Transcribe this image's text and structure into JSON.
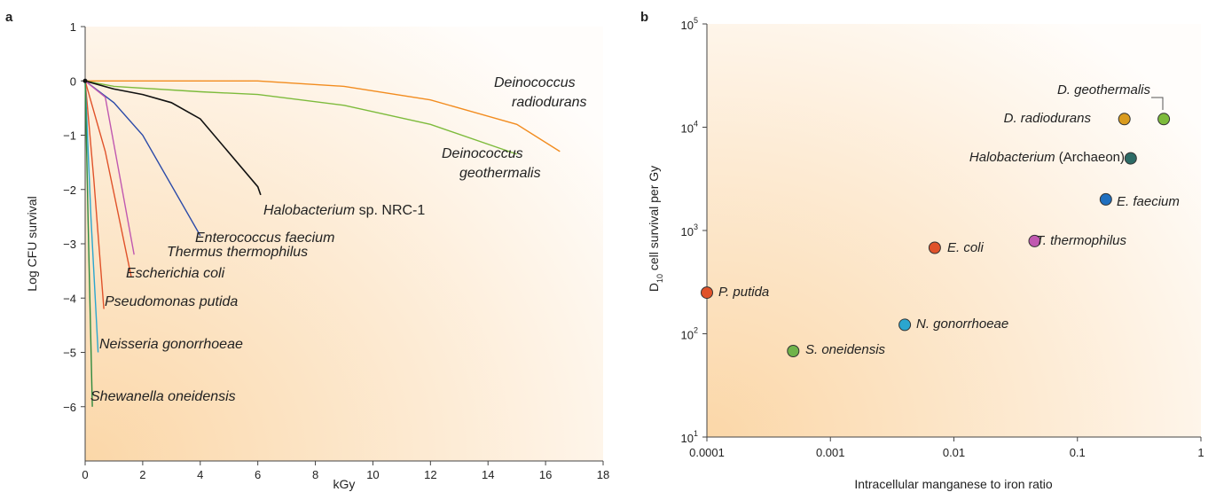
{
  "panel_a": {
    "letter": "a",
    "chart_data": {
      "type": "line",
      "xlabel": "kGy",
      "ylabel": "Log CFU survival",
      "xlim": [
        0,
        18
      ],
      "ylim": [
        -7,
        1
      ],
      "xticks": [
        "0",
        "2",
        "4",
        "6",
        "8",
        "10",
        "12",
        "14",
        "16",
        "18"
      ],
      "yticks": [
        "1",
        "0",
        "−1",
        "−2",
        "−3",
        "−4",
        "−5",
        "−6"
      ],
      "series": [
        {
          "name": "Deinococcus radiodurans",
          "color": "#f28c1f",
          "x": [
            0,
            6,
            9,
            12,
            15,
            16.5
          ],
          "y": [
            0,
            0,
            -0.1,
            -0.35,
            -0.8,
            -1.3
          ]
        },
        {
          "name": "Deinococcus geothermalis",
          "color": "#7dbb3c",
          "x": [
            0,
            1,
            4,
            6,
            9,
            12,
            15
          ],
          "y": [
            0,
            -0.1,
            -0.2,
            -0.25,
            -0.45,
            -0.8,
            -1.35
          ]
        },
        {
          "name": "Halobacterium sp. NRC-1",
          "color": "#111111",
          "x": [
            0,
            1,
            2,
            3,
            4,
            6,
            6.1
          ],
          "y": [
            0,
            -0.15,
            -0.25,
            -0.4,
            -0.7,
            -1.95,
            -2.1
          ]
        },
        {
          "name": "Enterococcus faecium",
          "color": "#2b4aa8",
          "x": [
            0,
            1,
            2,
            4
          ],
          "y": [
            0,
            -0.4,
            -1.0,
            -2.85
          ]
        },
        {
          "name": "Thermus thermophilus",
          "color": "#c058b0",
          "x": [
            0,
            0.7,
            1.7
          ],
          "y": [
            0,
            -0.3,
            -3.2
          ]
        },
        {
          "name": "Escherichia coli",
          "color": "#e0522a",
          "x": [
            0,
            0.7,
            1.6
          ],
          "y": [
            0,
            -1.3,
            -3.6
          ]
        },
        {
          "name": "Pseudomonas putida",
          "color": "#e0522a",
          "x": [
            0,
            0.3,
            0.65
          ],
          "y": [
            0,
            -1.8,
            -4.2
          ]
        },
        {
          "name": "Neisseria gonorrhoeae",
          "color": "#2aa6cf",
          "x": [
            0,
            0.2,
            0.45
          ],
          "y": [
            0,
            -2.5,
            -5.0
          ]
        },
        {
          "name": "Shewanella oneidensis",
          "color": "#2f8a3e",
          "x": [
            0,
            0.12,
            0.25
          ],
          "y": [
            0,
            -3.0,
            -6.0
          ]
        }
      ]
    },
    "labels": {
      "deino_rad_1": "Deinococcus",
      "deino_rad_2": "radiodurans",
      "deino_geo_1": "Deinococcus",
      "deino_geo_2": "geothermalis",
      "halo_italic": "Halobacterium",
      "halo_rest": " sp. NRC-1",
      "entero": "Enterococcus faecium",
      "thermus": "Thermus thermophilus",
      "ecoli": "Escherichia coli",
      "pseudo": "Pseudomonas putida",
      "neisseria": "Neisseria gonorrhoeae",
      "shewanella": "Shewanella oneidensis"
    }
  },
  "panel_b": {
    "letter": "b",
    "chart_data": {
      "type": "scatter",
      "xlabel": "Intracellular manganese to iron ratio",
      "ylabel_main": "D",
      "ylabel_sub": "10",
      "ylabel_rest": " cell survival per Gy",
      "xscale": "log",
      "yscale": "log",
      "xlim": [
        0.0001,
        1
      ],
      "ylim": [
        10,
        100000
      ],
      "xticks": [
        "0.0001",
        "0.001",
        "0.01",
        "0.1",
        "1"
      ],
      "yticks": [
        {
          "base": "10",
          "exp": "1"
        },
        {
          "base": "10",
          "exp": "2"
        },
        {
          "base": "10",
          "exp": "3"
        },
        {
          "base": "10",
          "exp": "4"
        },
        {
          "base": "10",
          "exp": "5"
        }
      ],
      "points": [
        {
          "label": "P. putida",
          "x": 0.0001,
          "y": 250,
          "color": "#e0522a"
        },
        {
          "label": "S. oneidensis",
          "x": 0.0005,
          "y": 68,
          "color": "#6fb34a"
        },
        {
          "label": "N. gonorrhoeae",
          "x": 0.004,
          "y": 122,
          "color": "#2aa6cf"
        },
        {
          "label": "E. coli",
          "x": 0.007,
          "y": 680,
          "color": "#e0522a"
        },
        {
          "label": "T. thermophilus",
          "x": 0.045,
          "y": 790,
          "color": "#c058b0"
        },
        {
          "label": "E. faecium",
          "x": 0.17,
          "y": 2000,
          "color": "#1f6fbf"
        },
        {
          "label": "Halobacterium (Archaeon)",
          "x": 0.27,
          "y": 5000,
          "color": "#2d6b66"
        },
        {
          "label": "D. radiodurans",
          "x": 0.24,
          "y": 12000,
          "color": "#d99b1e"
        },
        {
          "label": "D. geothermalis",
          "x": 0.5,
          "y": 12000,
          "color": "#7dbb3c"
        }
      ]
    },
    "labels": {
      "pputida": "P. putida",
      "soneid": "S. oneidensis",
      "ngon": "N. gonorrhoeae",
      "ecoli": "E. coli",
      "tthermo": "T. thermophilus",
      "efaec": "E. faecium",
      "halo_italic": "Halobacterium",
      "halo_rest": " (Archaeon)",
      "drad": "D. radiodurans",
      "dgeo": "D. geothermalis"
    }
  }
}
